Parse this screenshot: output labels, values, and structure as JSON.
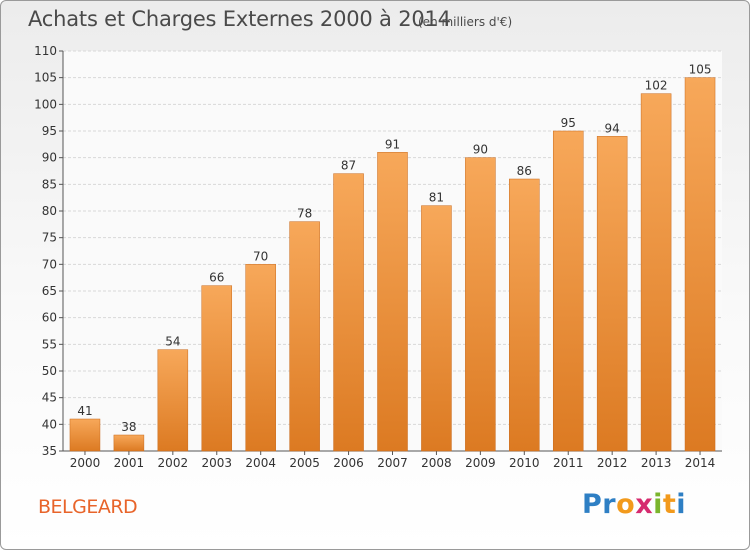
{
  "header": {
    "title": "Achats et Charges Externes 2000 à 2014",
    "subtitle": "(en milliers d'€)"
  },
  "footer": {
    "commune": "BELGEARD",
    "logo_letters": [
      {
        "char": "P",
        "color": "#2e7fc4"
      },
      {
        "char": "r",
        "color": "#2e7fc4"
      },
      {
        "char": "o",
        "color": "#f29a1c"
      },
      {
        "char": "x",
        "color": "#d62b6f"
      },
      {
        "char": "i",
        "color": "#7bb52d"
      },
      {
        "char": "t",
        "color": "#f29a1c"
      },
      {
        "char": "i",
        "color": "#2e7fc4"
      }
    ]
  },
  "colors": {
    "bar_top": "#f7a85a",
    "bar_bottom": "#dc7a22",
    "bar_edge": "#c8691a"
  },
  "chart_data": {
    "type": "bar",
    "title": "Achats et Charges Externes 2000 à 2014",
    "subtitle": "(en milliers d'€)",
    "categories": [
      "2000",
      "2001",
      "2002",
      "2003",
      "2004",
      "2005",
      "2006",
      "2007",
      "2008",
      "2009",
      "2010",
      "2011",
      "2012",
      "2013",
      "2014"
    ],
    "values": [
      41,
      38,
      54,
      66,
      70,
      78,
      87,
      91,
      81,
      90,
      86,
      95,
      94,
      102,
      105
    ],
    "ylim": [
      35,
      110
    ],
    "yticks": [
      35,
      40,
      45,
      50,
      55,
      60,
      65,
      70,
      75,
      80,
      85,
      90,
      95,
      100,
      105,
      110
    ],
    "grid": "horizontal",
    "legend": "none"
  }
}
